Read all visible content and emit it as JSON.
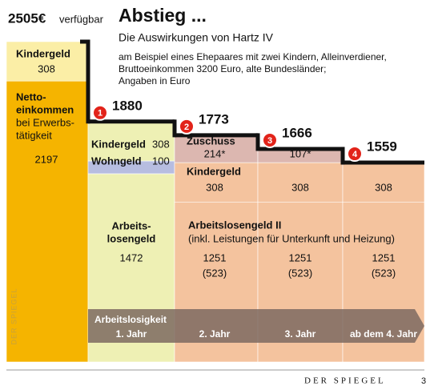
{
  "title": "Abstieg ...",
  "subtitle": "Die Auswirkungen von Hartz IV",
  "description": [
    "am Beispiel eines Ehepaares mit zwei Kindern, Alleinverdiener,",
    "Bruttoeinkommen 3200 Euro, alte Bundesländer;",
    "Angaben in Euro"
  ],
  "source": "DER SPIEGEL",
  "page": "3",
  "chart_data": {
    "type": "stacked-bar",
    "categories": [
      null,
      "1. Jahr",
      "2. Jahr",
      "3. Jahr",
      "ab dem 4. Jahr"
    ],
    "period_label": "Arbeitslosigkeit",
    "ylim": [
      0,
      2505
    ],
    "series": [
      {
        "label_lines": [
          "Netto-",
          "einkommen"
        ],
        "note_lines": [
          "bei Erwerbs-",
          "tätigkeit"
        ],
        "color": "#f5b400",
        "values": [
          2197,
          null,
          null,
          null,
          null
        ]
      },
      {
        "label_lines": [
          "Arbeits-",
          "losengeld"
        ],
        "color": "#eef0b4",
        "values": [
          null,
          1472,
          null,
          null,
          null
        ]
      },
      {
        "label_lines": [
          "Arbeitslosengeld II"
        ],
        "note_lines": [
          "(inkl. Leistungen für Unterkunft und Heizung)"
        ],
        "color": "#f4c39e",
        "values": [
          null,
          null,
          1251,
          1251,
          1251
        ],
        "extra_labels": [
          null,
          null,
          "(523)",
          "(523)",
          "(523)"
        ]
      },
      {
        "name": "Wohngeld",
        "color": "#b7bde0",
        "values": [
          null,
          100,
          null,
          null,
          null
        ]
      },
      {
        "name": "Kindergeld",
        "colors": [
          "#fbeea6",
          "#eef0b4",
          "#f4c39e",
          "#f4c39e",
          "#f4c39e"
        ],
        "values": [
          308,
          308,
          308,
          308,
          308
        ]
      },
      {
        "name": "Zuschuss",
        "color": "#dcb7b0",
        "values": [
          null,
          null,
          214,
          107,
          null
        ],
        "value_labels": [
          null,
          null,
          "214*",
          "107*",
          null
        ]
      }
    ],
    "totals": {
      "values": [
        2505,
        1880,
        1773,
        1666,
        1559
      ],
      "value_labels": [
        "2505€",
        "1880",
        "1773",
        "1666",
        "1559"
      ],
      "note": "verfügbar"
    },
    "steps": [
      "1",
      "2",
      "3",
      "4"
    ]
  }
}
